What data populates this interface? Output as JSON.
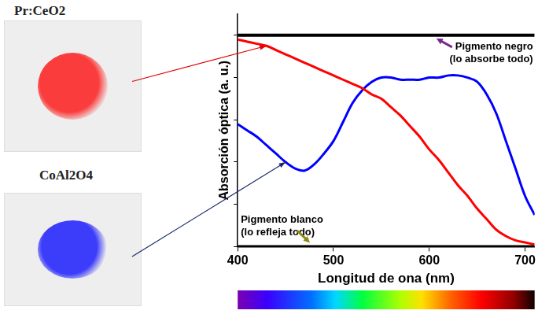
{
  "chart_data": {
    "type": "line",
    "x": [
      400,
      410,
      420,
      430,
      440,
      450,
      460,
      470,
      480,
      490,
      500,
      510,
      520,
      530,
      540,
      550,
      560,
      570,
      580,
      590,
      600,
      610,
      620,
      630,
      640,
      650,
      660,
      670,
      680,
      690,
      700,
      710
    ],
    "xlim": [
      400,
      710
    ],
    "xticks": [
      400,
      500,
      600,
      700
    ],
    "ylim": [
      0,
      1.1
    ],
    "yticks": [
      0,
      0.2,
      0.4,
      0.6,
      0.8,
      1.0
    ],
    "x_label": "Longitud de ona (nm)",
    "y_label": "Absorción óptica (a. u.)",
    "tick_labels": "x",
    "grid": false,
    "series": [
      {
        "name": "Pigmento negro (lo absorbe todo)",
        "color": "#000000",
        "values": [
          1,
          1,
          1,
          1,
          1,
          1,
          1,
          1,
          1,
          1,
          1,
          1,
          1,
          1,
          1,
          1,
          1,
          1,
          1,
          1,
          1,
          1,
          1,
          1,
          1,
          1,
          1,
          1,
          1,
          1,
          1,
          1
        ]
      },
      {
        "name": "Pigmento blanco (lo refleja todo)",
        "color": "#000000",
        "values": [
          0,
          0,
          0,
          0,
          0,
          0,
          0,
          0,
          0,
          0,
          0,
          0,
          0,
          0,
          0,
          0,
          0,
          0,
          0,
          0,
          0,
          0,
          0,
          0,
          0,
          0,
          0,
          0,
          0,
          0,
          0,
          0
        ]
      },
      {
        "name": "Pr:CeO2",
        "color": "#ff0000",
        "values": [
          0.98,
          0.97,
          0.96,
          0.95,
          0.93,
          0.91,
          0.89,
          0.87,
          0.85,
          0.83,
          0.81,
          0.79,
          0.77,
          0.75,
          0.72,
          0.7,
          0.66,
          0.62,
          0.57,
          0.52,
          0.46,
          0.41,
          0.35,
          0.29,
          0.24,
          0.18,
          0.13,
          0.08,
          0.05,
          0.03,
          0.02,
          0.01
        ]
      },
      {
        "name": "CoAl2O4",
        "color": "#0000ff",
        "values": [
          0.58,
          0.55,
          0.52,
          0.48,
          0.44,
          0.4,
          0.37,
          0.36,
          0.39,
          0.44,
          0.5,
          0.59,
          0.68,
          0.74,
          0.78,
          0.8,
          0.8,
          0.79,
          0.79,
          0.79,
          0.8,
          0.8,
          0.81,
          0.81,
          0.8,
          0.78,
          0.72,
          0.63,
          0.5,
          0.37,
          0.24,
          0.15
        ]
      }
    ]
  }
}
